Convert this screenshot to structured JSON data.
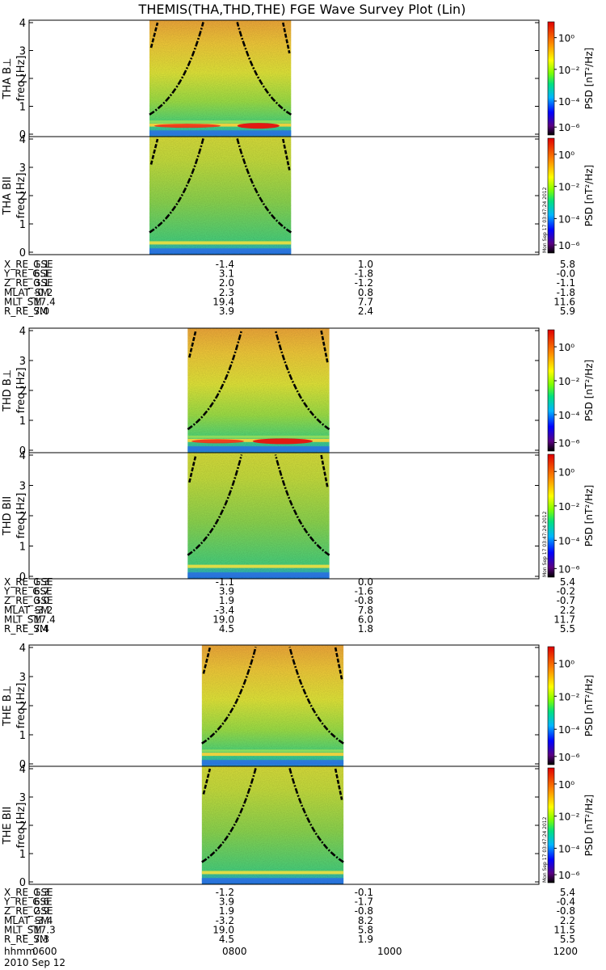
{
  "title": "THEMIS(THA,THD,THE) FGE Wave Survey Plot (Lin)",
  "colorbar": {
    "label": "PSD [nT²/Hz]",
    "ticks": [
      "10⁰",
      "10⁻²",
      "10⁻⁴",
      "10⁻⁶"
    ]
  },
  "stamp": "Mon Sep 17 03:47:24 2012",
  "chart_data": {
    "type": "heatmap",
    "yticks": [
      "0",
      "1",
      "2",
      "3",
      "4"
    ],
    "ylim": [
      0,
      4
    ],
    "xlim": [
      "0600",
      "1200"
    ],
    "time_axis": {
      "label": "hhmm",
      "ticks": [
        "0600",
        "0800",
        "1000",
        "1200"
      ],
      "date": "2010 Sep 12"
    },
    "panels": [
      {
        "name": "THA B⊥",
        "ylabel": "freq [Hz]",
        "data_start": "0725",
        "data_end": "0905",
        "dip": "0832"
      },
      {
        "name": "THA BII",
        "ylabel": "freq [Hz]",
        "data_start": "0725",
        "data_end": "0905"
      },
      {
        "name": "THD B⊥",
        "ylabel": "freq [Hz]",
        "data_start": "0752",
        "data_end": "0932",
        "dip": "0845"
      },
      {
        "name": "THD BII",
        "ylabel": "freq [Hz]",
        "data_start": "0752",
        "data_end": "0932"
      },
      {
        "name": "THE B⊥",
        "ylabel": "freq [Hz]",
        "data_start": "0802",
        "data_end": "0942"
      },
      {
        "name": "THE BII",
        "ylabel": "freq [Hz]",
        "data_start": "0802",
        "data_end": "0942"
      }
    ],
    "ephemeris": [
      {
        "rows": [
          {
            "label": "X_RE_GSE",
            "values": [
              "1.1",
              "-1.4",
              "1.0",
              "5.8"
            ]
          },
          {
            "label": "Y_RE_GSE",
            "values": [
              "6.1",
              "3.1",
              "-1.8",
              "-0.0"
            ]
          },
          {
            "label": "Z_RE_GSE",
            "values": [
              "3.1",
              "2.0",
              "-1.2",
              "-1.1"
            ]
          },
          {
            "label": "MLAT_SM",
            "values": [
              "-0.2",
              "2.3",
              "0.8",
              "-1.8"
            ]
          },
          {
            "label": "MLT_SM",
            "values": [
              "17.4",
              "19.4",
              "7.7",
              "11.6"
            ]
          },
          {
            "label": "R_RE_SM",
            "values": [
              "7.0",
              "3.9",
              "2.4",
              "5.9"
            ]
          }
        ]
      },
      {
        "rows": [
          {
            "label": "X_RE_GSE",
            "values": [
              "1.3",
              "-1.1",
              "0.0",
              "5.4"
            ]
          },
          {
            "label": "Y_RE_GSE",
            "values": [
              "6.7",
              "3.9",
              "-1.6",
              "-0.2"
            ]
          },
          {
            "label": "Z_RE_GSE",
            "values": [
              "3.0",
              "1.9",
              "-0.8",
              "-0.7"
            ]
          },
          {
            "label": "MLAT_SM",
            "values": [
              "-3.2",
              "-3.4",
              "7.8",
              "2.2"
            ]
          },
          {
            "label": "MLT_SM",
            "values": [
              "17.4",
              "19.0",
              "6.0",
              "11.7"
            ]
          },
          {
            "label": "R_RE_SM",
            "values": [
              "7.4",
              "4.5",
              "1.8",
              "5.5"
            ]
          }
        ]
      },
      {
        "rows": [
          {
            "label": "X_RE_GSE",
            "values": [
              "1.3",
              "-1.2",
              "-0.1",
              "5.4"
            ]
          },
          {
            "label": "Y_RE_GSE",
            "values": [
              "6.6",
              "3.9",
              "-1.7",
              "-0.4"
            ]
          },
          {
            "label": "Z_RE_GSE",
            "values": [
              "2.9",
              "1.9",
              "-0.8",
              "-0.8"
            ]
          },
          {
            "label": "MLAT_SM",
            "values": [
              "-3.4",
              "-3.2",
              "8.2",
              "2.2"
            ]
          },
          {
            "label": "MLT_SM",
            "values": [
              "17.3",
              "19.0",
              "5.8",
              "11.5"
            ]
          },
          {
            "label": "R_RE_SM",
            "values": [
              "7.3",
              "4.5",
              "1.9",
              "5.5"
            ]
          }
        ]
      }
    ]
  }
}
